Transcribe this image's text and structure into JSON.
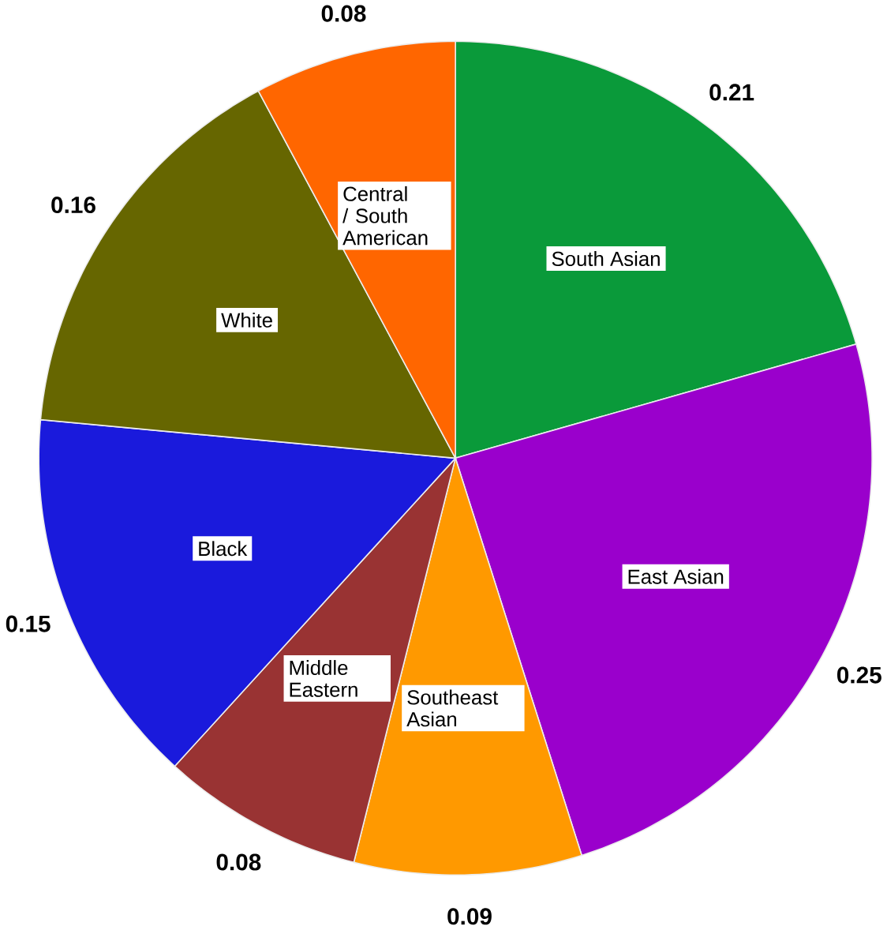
{
  "chart_data": {
    "type": "pie",
    "categories": [
      "South Asian",
      "East Asian",
      "Southeast Asian",
      "Middle Eastern",
      "Black",
      "White",
      "Central / South American"
    ],
    "values": [
      0.21,
      0.25,
      0.09,
      0.08,
      0.15,
      0.16,
      0.08
    ],
    "colors": [
      "#0a9a3a",
      "#9a00cc",
      "#ff9900",
      "#993333",
      "#1a1adc",
      "#666600",
      "#ff6600"
    ],
    "value_labels": [
      "0.21",
      "0.25",
      "0.09",
      "0.08",
      "0.15",
      "0.16",
      "0.08"
    ]
  }
}
